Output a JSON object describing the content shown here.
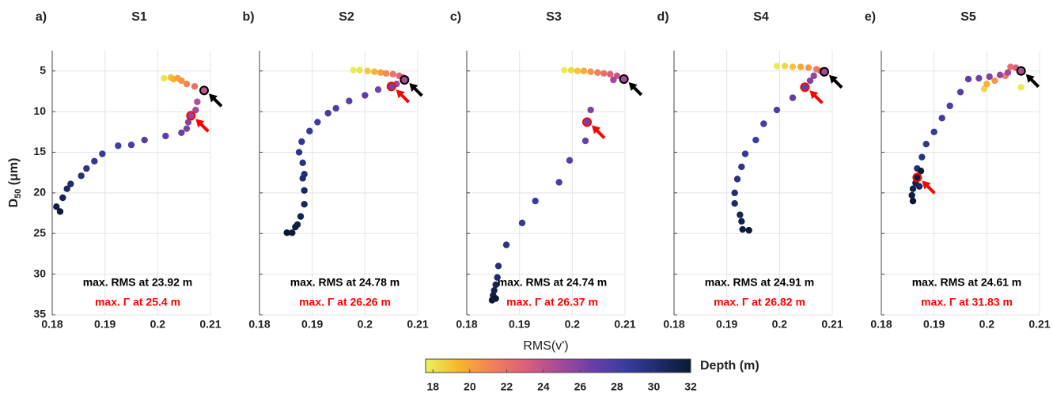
{
  "chart_data": [
    {
      "type": "scatter",
      "panel_label": "a)",
      "title": "S1",
      "ylabel": "D",
      "ylabel_sub": "50",
      "ylabel_unit": " (μm)",
      "xlim": [
        0.18,
        0.21
      ],
      "xticks": [
        0.18,
        0.19,
        0.2,
        0.21
      ],
      "ylim": [
        2.5,
        35
      ],
      "yticks": [
        5,
        10,
        15,
        20,
        25,
        30,
        35
      ],
      "y_reversed": true,
      "grid": true,
      "x": [
        0.2012,
        0.2025,
        0.203,
        0.2038,
        0.2045,
        0.2055,
        0.207,
        0.2088,
        0.2075,
        0.2072,
        0.2063,
        0.2058,
        0.2055,
        0.2045,
        0.2015,
        0.1975,
        0.195,
        0.1925,
        0.1895,
        0.188,
        0.1865,
        0.1855,
        0.1835,
        0.1828,
        0.182,
        0.1808,
        0.1815
      ],
      "y": [
        5.9,
        5.8,
        6.0,
        5.9,
        6.2,
        6.6,
        6.9,
        7.4,
        8.8,
        9.8,
        10.5,
        11.3,
        12.1,
        12.6,
        13.0,
        13.5,
        14.1,
        14.2,
        15.2,
        16.1,
        17.0,
        17.9,
        18.9,
        19.5,
        20.6,
        21.7,
        22.3
      ],
      "depth": [
        18,
        19,
        19.5,
        20,
        20.5,
        21,
        22,
        23.92,
        24.5,
        25,
        25.4,
        25.8,
        26.2,
        26.6,
        27,
        27.4,
        27.8,
        28.2,
        28.6,
        29,
        29.4,
        29.8,
        30.2,
        30.6,
        31,
        31.4,
        31.8
      ],
      "highlights": [
        {
          "x": 0.2088,
          "y": 7.4,
          "color": "#000000"
        },
        {
          "x": 0.2063,
          "y": 10.5,
          "color": "#ff0000"
        }
      ],
      "annotations": [
        {
          "text": "max. RMS at 23.92 m",
          "color": "#000000"
        },
        {
          "text": "max. Γ at 25.4 m",
          "color": "#ff0000"
        }
      ]
    },
    {
      "type": "scatter",
      "panel_label": "b)",
      "title": "S2",
      "xlim": [
        0.18,
        0.21
      ],
      "xticks": [
        0.18,
        0.19,
        0.2,
        0.21
      ],
      "ylim": [
        2.5,
        35
      ],
      "y_reversed": true,
      "grid": true,
      "x": [
        0.1978,
        0.199,
        0.2005,
        0.2018,
        0.203,
        0.204,
        0.2053,
        0.2065,
        0.2072,
        0.2075,
        0.206,
        0.205,
        0.2025,
        0.2,
        0.197,
        0.1945,
        0.193,
        0.191,
        0.1895,
        0.188,
        0.1875,
        0.1882,
        0.1885,
        0.1882,
        0.1885,
        0.1885,
        0.1878,
        0.1872,
        0.1868,
        0.1862,
        0.1852
      ],
      "y": [
        4.9,
        4.9,
        5.0,
        5.1,
        5.2,
        5.3,
        5.4,
        5.6,
        5.8,
        6.1,
        6.6,
        6.9,
        7.3,
        8.0,
        8.7,
        9.6,
        10.2,
        11.3,
        12.4,
        13.7,
        15.0,
        16.3,
        17.7,
        18.2,
        19.7,
        21.4,
        22.9,
        23.9,
        24.2,
        24.9,
        24.9
      ],
      "depth": [
        17.8,
        18,
        18.8,
        19.5,
        20.2,
        21,
        21.8,
        22.6,
        23.5,
        24.78,
        25.2,
        26.26,
        26.5,
        27,
        27.4,
        27.7,
        28,
        28.3,
        28.6,
        29,
        29.3,
        29.6,
        29.9,
        30.2,
        30.5,
        30.8,
        31.1,
        31.4,
        31.6,
        31.8,
        32
      ],
      "highlights": [
        {
          "x": 0.2075,
          "y": 6.1,
          "color": "#000000"
        },
        {
          "x": 0.205,
          "y": 6.9,
          "color": "#ff0000"
        }
      ],
      "annotations": [
        {
          "text": "max. RMS at 24.78 m",
          "color": "#000000"
        },
        {
          "text": "max. Γ at 26.26 m",
          "color": "#ff0000"
        }
      ]
    },
    {
      "type": "scatter",
      "panel_label": "c)",
      "title": "S3",
      "xlabel": "RMS(v')",
      "xlim": [
        0.18,
        0.21
      ],
      "xticks": [
        0.18,
        0.19,
        0.2,
        0.21
      ],
      "ylim": [
        2.5,
        35
      ],
      "y_reversed": true,
      "grid": true,
      "x": [
        0.1985,
        0.1998,
        0.201,
        0.2022,
        0.2035,
        0.2048,
        0.206,
        0.2072,
        0.2085,
        0.2098,
        0.2078,
        0.2035,
        0.2028,
        0.2025,
        0.1995,
        0.1975,
        0.193,
        0.1905,
        0.1875,
        0.186,
        0.1858,
        0.1855,
        0.1852,
        0.185,
        0.1855,
        0.1848
      ],
      "y": [
        4.9,
        4.9,
        5.0,
        5.0,
        5.1,
        5.2,
        5.3,
        5.4,
        5.6,
        6.0,
        6.1,
        9.8,
        11.3,
        13.6,
        16.0,
        18.7,
        21.0,
        23.7,
        26.4,
        29.0,
        30.4,
        31.3,
        32.0,
        32.6,
        33.0,
        33.2
      ],
      "depth": [
        17.8,
        18.3,
        19,
        19.8,
        20.6,
        21.4,
        22.2,
        23,
        23.8,
        24.74,
        25,
        26,
        26.37,
        26.8,
        27.3,
        27.8,
        28.3,
        28.8,
        29.3,
        29.8,
        30.3,
        30.8,
        31.3,
        31.6,
        32,
        32
      ],
      "highlights": [
        {
          "x": 0.2098,
          "y": 6.0,
          "color": "#000000"
        },
        {
          "x": 0.2028,
          "y": 11.3,
          "color": "#ff0000"
        }
      ],
      "annotations": [
        {
          "text": "max. RMS at 24.74 m",
          "color": "#000000"
        },
        {
          "text": "max. Γ at 26.37 m",
          "color": "#ff0000"
        }
      ]
    },
    {
      "type": "scatter",
      "panel_label": "d)",
      "title": "S4",
      "xlim": [
        0.18,
        0.21
      ],
      "xticks": [
        0.18,
        0.19,
        0.2,
        0.21
      ],
      "ylim": [
        2.5,
        35
      ],
      "y_reversed": true,
      "grid": true,
      "x": [
        0.1995,
        0.201,
        0.2025,
        0.204,
        0.2055,
        0.207,
        0.2078,
        0.2085,
        0.2065,
        0.2058,
        0.2048,
        0.2025,
        0.1995,
        0.197,
        0.1955,
        0.1935,
        0.1928,
        0.192,
        0.1915,
        0.1915,
        0.1925,
        0.1928,
        0.193,
        0.1942
      ],
      "y": [
        4.4,
        4.4,
        4.5,
        4.5,
        4.6,
        4.8,
        5.0,
        5.1,
        5.6,
        6.2,
        7.0,
        8.3,
        9.8,
        11.5,
        13.5,
        15.2,
        16.8,
        18.3,
        20.0,
        21.3,
        22.7,
        23.5,
        24.5,
        24.6
      ],
      "depth": [
        17.8,
        18.3,
        19,
        19.8,
        20.6,
        21.5,
        22.4,
        24.91,
        25.4,
        26,
        26.82,
        27.2,
        27.6,
        28,
        28.4,
        28.8,
        29.2,
        29.6,
        30,
        30.4,
        30.8,
        31.2,
        31.6,
        32
      ],
      "highlights": [
        {
          "x": 0.2085,
          "y": 5.1,
          "color": "#000000"
        },
        {
          "x": 0.2048,
          "y": 7.0,
          "color": "#ff0000"
        }
      ],
      "annotations": [
        {
          "text": "max. RMS at 24.91 m",
          "color": "#000000"
        },
        {
          "text": "max. Γ at 26.82 m",
          "color": "#ff0000"
        }
      ]
    },
    {
      "type": "scatter",
      "panel_label": "e)",
      "title": "S5",
      "xlim": [
        0.18,
        0.21
      ],
      "xticks": [
        0.18,
        0.19,
        0.2,
        0.21
      ],
      "ylim": [
        2.5,
        35
      ],
      "y_reversed": true,
      "grid": true,
      "x": [
        0.2065,
        0.1995,
        0.2,
        0.2015,
        0.2035,
        0.2045,
        0.2055,
        0.2065,
        0.204,
        0.2025,
        0.2005,
        0.1985,
        0.1965,
        0.195,
        0.193,
        0.1915,
        0.19,
        0.1885,
        0.1877,
        0.1868,
        0.1875,
        0.1872,
        0.1865,
        0.186,
        0.1858,
        0.186,
        0.1868
      ],
      "y": [
        7.0,
        7.2,
        6.6,
        6.2,
        5.6,
        4.5,
        4.6,
        5.0,
        5.2,
        5.5,
        5.7,
        5.9,
        6.0,
        7.6,
        9.3,
        10.8,
        12.5,
        14.0,
        15.6,
        17.0,
        17.3,
        19.2,
        18.8,
        19.5,
        20.3,
        21.0,
        18.1
      ],
      "depth": [
        17.8,
        18.5,
        19.5,
        20.5,
        21.3,
        22,
        23,
        24.61,
        25,
        25.5,
        26,
        26.5,
        27,
        27.4,
        27.8,
        28.2,
        28.6,
        29,
        29.4,
        29.8,
        32,
        30.7,
        31,
        31.3,
        31.6,
        32,
        31.83
      ],
      "highlights": [
        {
          "x": 0.2065,
          "y": 5.0,
          "color": "#000000"
        },
        {
          "x": 0.1868,
          "y": 18.1,
          "color": "#ff0000"
        }
      ],
      "annotations": [
        {
          "text": "max. RMS at 24.61 m",
          "color": "#000000"
        },
        {
          "text": "max. Γ at 31.83 m",
          "color": "#ff0000"
        }
      ]
    }
  ],
  "colorbar": {
    "label": "Depth (m)",
    "lim": [
      17.6,
      32
    ],
    "ticks": [
      18,
      20,
      22,
      24,
      26,
      28,
      30,
      32
    ],
    "colormap": [
      "#e8f25c",
      "#f7b52c",
      "#f4805a",
      "#dc5f7a",
      "#a84b97",
      "#6c3fa8",
      "#3b3c9f",
      "#1f2c6e",
      "#0a1a33"
    ]
  }
}
